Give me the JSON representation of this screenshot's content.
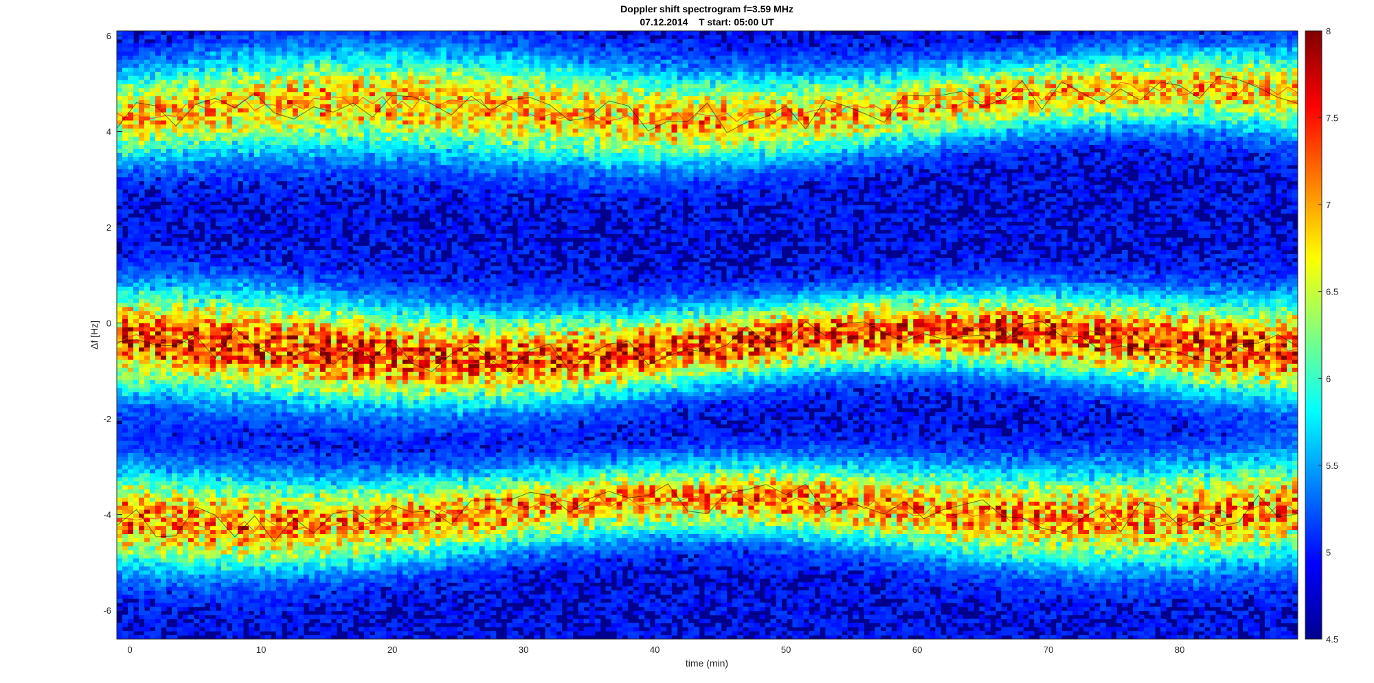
{
  "chart_data": {
    "type": "heatmap",
    "title": "Doppler shift spectrogram f=3.59 MHz",
    "subtitle": "07.12.2014    T start: 05:00 UT",
    "xlabel": "time (min)",
    "ylabel": "Δf [Hz]",
    "xlim": [
      -1,
      89
    ],
    "ylim": [
      -6.6,
      6.1
    ],
    "x_ticks": [
      0,
      10,
      20,
      30,
      40,
      50,
      60,
      70,
      80
    ],
    "y_ticks": [
      -6,
      -4,
      -2,
      0,
      2,
      4,
      6
    ],
    "colorbar": {
      "range": [
        4.5,
        8
      ],
      "ticks": [
        4.5,
        5,
        5.5,
        6,
        6.5,
        7,
        7.5,
        8
      ],
      "colormap": "jet"
    },
    "bands": [
      {
        "center_start": 4.3,
        "center_end": 4.7,
        "peak_intensity": 7.2
      },
      {
        "center_start": -0.6,
        "center_end": -0.3,
        "peak_intensity": 7.8
      },
      {
        "center_start": -4.0,
        "center_end": -3.8,
        "peak_intensity": 7.4
      }
    ],
    "background_intensity": 4.8,
    "colors": {
      "background_low": "#00008f",
      "mid": "#00ffff",
      "high": "#ffff00",
      "peak": "#800000",
      "trace_line": "#000000"
    }
  }
}
